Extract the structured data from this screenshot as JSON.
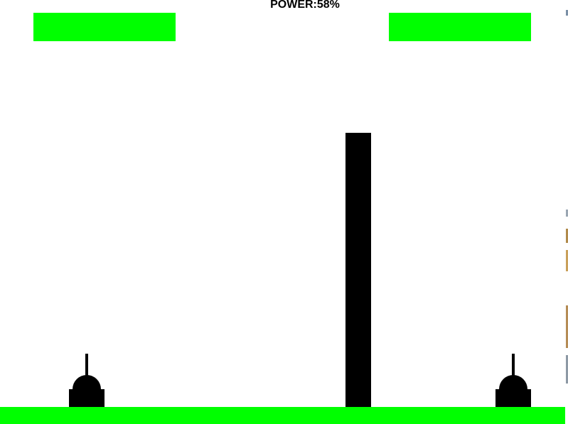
{
  "hud": {
    "power_label": "POWER:58%",
    "power_percent": 58
  },
  "players": {
    "left": {
      "health_fraction": 1.0
    },
    "right": {
      "health_fraction": 1.0
    }
  },
  "colors": {
    "background": "#ffffff",
    "health": "#00ff00",
    "ground": "#00ff00",
    "wall": "#000000",
    "tank": "#000000",
    "text": "#000000"
  },
  "icons": {
    "left_tank": "tank-icon",
    "right_tank": "tank-icon"
  }
}
